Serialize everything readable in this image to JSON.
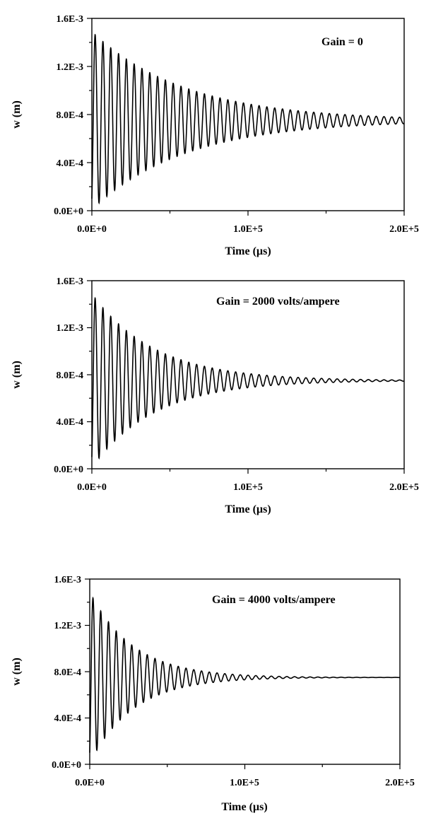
{
  "chart_data": [
    {
      "type": "line",
      "annotation": "Gain = 0",
      "xlabel": "Time (µs)",
      "ylabel": "w (m)",
      "xlim": [
        0,
        200000
      ],
      "ylim": [
        0,
        0.0016
      ],
      "x_ticks": [
        "0.0E+0",
        "1.0E+5",
        "2.0E+5"
      ],
      "y_ticks": [
        "0.0E+0",
        "4.0E-4",
        "8.0E-4",
        "1.2E-3",
        "1.6E-3"
      ],
      "grid": false,
      "series": [
        {
          "equilibrium": 0.00075,
          "initial_amplitude": 0.00074,
          "decay_time_constant": 60000,
          "period": 5000,
          "start": 0.0001
        }
      ]
    },
    {
      "type": "line",
      "annotation": "Gain = 2000 volts/ampere",
      "xlabel": "Time (µs)",
      "ylabel": "w (m)",
      "xlim": [
        0,
        200000
      ],
      "ylim": [
        0,
        0.0016
      ],
      "x_ticks": [
        "0.0E+0",
        "1.0E+5",
        "2.0E+5"
      ],
      "y_ticks": [
        "0.0E+0",
        "4.0E-4",
        "8.0E-4",
        "1.2E-3",
        "1.6E-3"
      ],
      "grid": false,
      "series": [
        {
          "equilibrium": 0.00075,
          "initial_amplitude": 0.00074,
          "decay_time_constant": 40000,
          "period": 5000,
          "start": 0.0001
        }
      ]
    },
    {
      "type": "line",
      "annotation": "Gain = 4000 volts/ampere",
      "xlabel": "Time (µs)",
      "ylabel": "w (m)",
      "xlim": [
        0,
        200000
      ],
      "ylim": [
        0,
        0.0016
      ],
      "x_ticks": [
        "0.0E+0",
        "1.0E+5",
        "2.0E+5"
      ],
      "y_ticks": [
        "0.0E+0",
        "4.0E-4",
        "8.0E-4",
        "1.2E-3",
        "1.6E-3"
      ],
      "grid": false,
      "series": [
        {
          "equilibrium": 0.00075,
          "initial_amplitude": 0.00074,
          "decay_time_constant": 28000,
          "period": 5000,
          "start": 0.0001
        }
      ]
    }
  ]
}
